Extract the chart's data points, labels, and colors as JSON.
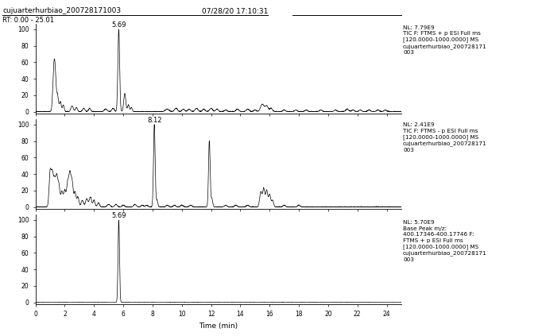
{
  "title_left": "cujuarterhurbiao_200728171003",
  "title_center": "07/28/20 17:10:31",
  "rt_label": "RT: 0.00 - 25.01",
  "x_label": "Time (min)",
  "x_min": 0,
  "x_max": 25,
  "x_ticks": [
    0,
    2,
    4,
    6,
    8,
    10,
    12,
    14,
    16,
    18,
    20,
    22,
    24
  ],
  "y_ticks": [
    0,
    20,
    40,
    60,
    80,
    100
  ],
  "panel1_label": "NL: 7.79E9\nTIC F: FTMS + p ESI Full ms\n[120.0000-1000.0000] MS\ncujuarterhurbiao_200728171\n003",
  "panel2_label": "NL: 2.41E9\nTIC F: FTMS - p ESI Full ms\n[120.0000-1000.0000] MS\ncujuarterhurbiao_200728171\n003",
  "panel3_label": "NL: 5.70E9\nBase Peak m/z:\n400.17346-400.17746 F:\nFTMS + p ESI Full ms\n[120.0000-1000.0000] MS\ncujuarterhurbiao_200728171\n003",
  "peak1_label": "5.69",
  "peak2_label": "8.12",
  "peak3_label": "5.69",
  "bg_color": "#ffffff",
  "line_color": "#000000",
  "text_color": "#000000"
}
